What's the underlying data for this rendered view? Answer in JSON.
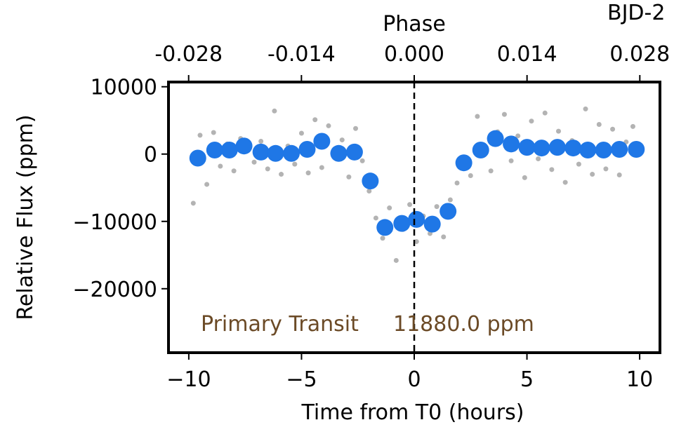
{
  "chart_data": {
    "type": "scatter",
    "title": "BJD-2",
    "top_axis_label": "Phase",
    "xlabel": "Time from T0 (hours)",
    "ylabel": "Relative Flux (ppm)",
    "annotations": [
      "Primary Transit",
      "11880.0 ppm"
    ],
    "annotation_color": "#6b4a26",
    "vline": 0,
    "xlim": [
      -10.9,
      10.9
    ],
    "xticks": [
      {
        "value": -10,
        "label": "−10"
      },
      {
        "value": -5,
        "label": "−5"
      },
      0,
      5,
      10
    ],
    "ylim": [
      -29500,
      10700
    ],
    "yticks": [
      {
        "value": -20000,
        "label": "−20000"
      },
      {
        "value": -10000,
        "label": "−10000"
      },
      0,
      10000
    ],
    "x2lim": [
      -0.0305,
      0.0305
    ],
    "x2ticks": [
      -0.028,
      -0.014,
      {
        "value": 0,
        "label": "0.000"
      },
      0.014,
      0.028
    ],
    "series": [
      {
        "color": "#b3b3b3",
        "size": 3.5,
        "x": [
          -9.8,
          -9.5,
          -9.2,
          -8.9,
          -8.6,
          -8.3,
          -8.0,
          -7.7,
          -7.4,
          -7.1,
          -6.8,
          -6.5,
          -6.2,
          -5.9,
          -5.6,
          -5.3,
          -5.0,
          -4.7,
          -4.4,
          -4.1,
          -3.8,
          -3.5,
          -3.2,
          -2.9,
          -2.6,
          -2.3,
          -2.0,
          -1.7,
          -1.4,
          -1.1,
          -0.8,
          -0.5,
          -0.2,
          0.1,
          0.4,
          0.7,
          1.0,
          1.3,
          1.6,
          1.9,
          2.2,
          2.5,
          2.8,
          3.1,
          3.4,
          3.7,
          4.0,
          4.3,
          4.6,
          4.9,
          5.2,
          5.5,
          5.8,
          6.1,
          6.4,
          6.7,
          7.0,
          7.3,
          7.6,
          7.9,
          8.2,
          8.5,
          8.8,
          9.1,
          9.4,
          9.7
        ],
        "values": [
          -7300,
          2800,
          -4500,
          3200,
          -1800,
          1500,
          -2500,
          2300,
          500,
          -1200,
          1900,
          -2200,
          6400,
          -3000,
          1200,
          -1500,
          3100,
          -2800,
          5100,
          -2000,
          4200,
          -500,
          2100,
          -3400,
          3800,
          -1000,
          -5500,
          -9500,
          -12500,
          -8000,
          -15800,
          -11200,
          -7500,
          -13000,
          -9200,
          -11800,
          -7800,
          -12300,
          -6800,
          -4300,
          -1200,
          -3200,
          5600,
          1000,
          -2500,
          3300,
          5900,
          -1000,
          2700,
          -3500,
          4900,
          -700,
          6100,
          -2300,
          3400,
          -4200,
          2000,
          -1500,
          6700,
          -3000,
          4400,
          -2200,
          3700,
          -3100,
          1800,
          4100
        ]
      },
      {
        "color": "#1f77e6",
        "size": 12,
        "x": [
          -9.6,
          -8.85,
          -8.2,
          -7.55,
          -6.8,
          -6.15,
          -5.45,
          -4.75,
          -4.1,
          -3.35,
          -2.65,
          -1.95,
          -1.3,
          -0.55,
          0.1,
          0.8,
          1.5,
          2.2,
          2.95,
          3.6,
          4.3,
          5.0,
          5.65,
          6.35,
          7.05,
          7.7,
          8.4,
          9.1,
          9.85
        ],
        "values": [
          -600,
          600,
          600,
          1200,
          300,
          100,
          100,
          700,
          1900,
          100,
          300,
          -4000,
          -10900,
          -10300,
          -9700,
          -10400,
          -8500,
          -1300,
          600,
          2300,
          1500,
          1000,
          900,
          1000,
          900,
          600,
          600,
          700,
          700
        ]
      }
    ]
  }
}
